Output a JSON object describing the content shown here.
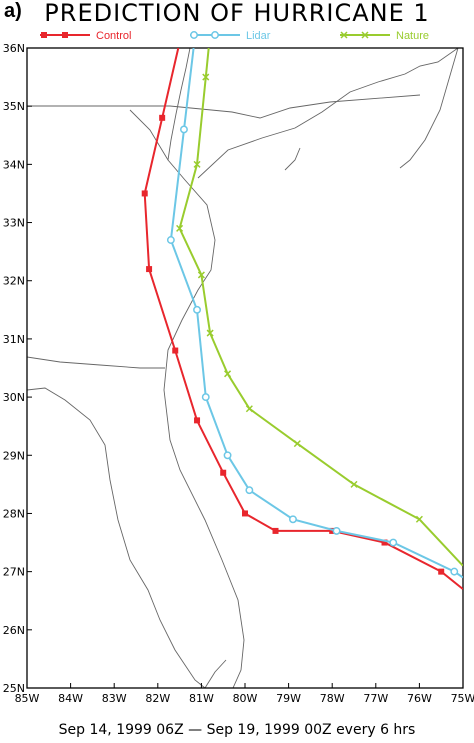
{
  "panel_label": "a)",
  "title": "PREDICTION OF HURRICANE 1",
  "footer": "Sep 14, 1999 06Z  —  Sep 19, 1999 00Z every 6 hrs",
  "chart_data": {
    "type": "line",
    "title": "PREDICTION OF HURRICANE 1",
    "xlim": [
      -85,
      -75
    ],
    "ylim": [
      25,
      36
    ],
    "x_ticks": [
      {
        "value": -85,
        "label": "85W"
      },
      {
        "value": -84,
        "label": "84W"
      },
      {
        "value": -83,
        "label": "83W"
      },
      {
        "value": -82,
        "label": "82W"
      },
      {
        "value": -81,
        "label": "81W"
      },
      {
        "value": -80,
        "label": "80W"
      },
      {
        "value": -79,
        "label": "79W"
      },
      {
        "value": -78,
        "label": "78W"
      },
      {
        "value": -77,
        "label": "77W"
      },
      {
        "value": -76,
        "label": "76W"
      },
      {
        "value": -75,
        "label": "75W"
      }
    ],
    "y_ticks": [
      {
        "value": 25,
        "label": "25N"
      },
      {
        "value": 26,
        "label": "26N"
      },
      {
        "value": 27,
        "label": "27N"
      },
      {
        "value": 28,
        "label": "28N"
      },
      {
        "value": 29,
        "label": "29N"
      },
      {
        "value": 30,
        "label": "30N"
      },
      {
        "value": 31,
        "label": "31N"
      },
      {
        "value": 32,
        "label": "32N"
      },
      {
        "value": 33,
        "label": "33N"
      },
      {
        "value": 34,
        "label": "34N"
      },
      {
        "value": 35,
        "label": "35N"
      },
      {
        "value": 36,
        "label": "36N"
      }
    ],
    "legend_position": "top",
    "series": [
      {
        "name": "Control",
        "color": "#e8262d",
        "marker": "square",
        "x": [
          -75,
          -75.5,
          -76.8,
          -78.0,
          -79.3,
          -80.0,
          -80.5,
          -81.1,
          -81.6,
          -82.2,
          -82.3,
          -81.9
        ],
        "y": [
          26.7,
          27.0,
          27.5,
          27.7,
          27.7,
          28.0,
          28.7,
          29.6,
          30.8,
          32.2,
          33.5,
          34.8
        ]
      },
      {
        "name": "Lidar",
        "color": "#6cc7e6",
        "marker": "circle",
        "x": [
          -75,
          -75.2,
          -76.6,
          -77.9,
          -78.9,
          -79.9,
          -80.4,
          -80.9,
          -81.1,
          -81.7,
          -81.4
        ],
        "y": [
          26.9,
          27.0,
          27.5,
          27.7,
          27.9,
          28.4,
          29.0,
          30.0,
          31.5,
          32.7,
          34.6
        ]
      },
      {
        "name": "Nature",
        "color": "#99cc2e",
        "marker": "x",
        "x": [
          -75.0,
          -76.0,
          -77.5,
          -78.8,
          -79.9,
          -80.4,
          -80.8,
          -81.0,
          -81.5,
          -81.1,
          -80.9
        ],
        "y": [
          27.1,
          27.9,
          28.5,
          29.2,
          29.8,
          30.4,
          31.1,
          32.1,
          32.9,
          34.0,
          35.5
        ]
      }
    ]
  }
}
